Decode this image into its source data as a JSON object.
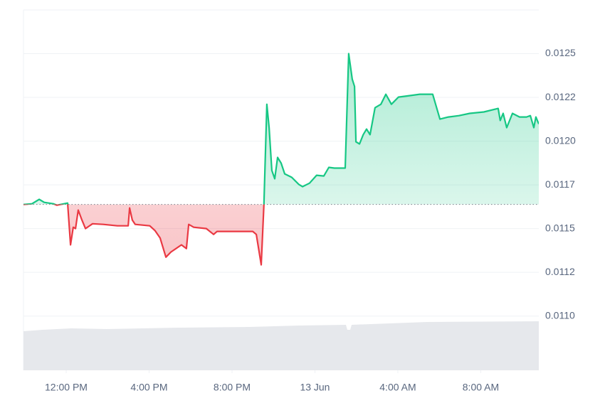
{
  "chart_data": {
    "type": "line",
    "baseline": 0.011638,
    "up_color": "#16c784",
    "down_color": "#ea3943",
    "grid": true,
    "xlim": [
      9.94,
      34.8
    ],
    "xticks": [
      {
        "value": 12,
        "label": "12:00 PM"
      },
      {
        "value": 16,
        "label": "4:00 PM"
      },
      {
        "value": 20,
        "label": "8:00 PM"
      },
      {
        "value": 24,
        "label": "13 Jun"
      },
      {
        "value": 28,
        "label": "4:00 AM"
      },
      {
        "value": 32,
        "label": "8:00 AM"
      }
    ],
    "ylim": [
      0.01069,
      0.01275
    ],
    "yticks": [
      {
        "value": 0.011,
        "label": "0.0110"
      },
      {
        "value": 0.01125,
        "label": "0.0112"
      },
      0.0115,
      {
        "value": 0.01175,
        "label": "0.0117"
      },
      {
        "value": 0.012,
        "label": "0.0120"
      },
      {
        "value": 0.01225,
        "label": "0.0122"
      },
      0.0125
    ],
    "x": [
      9.94,
      10.35,
      10.7,
      10.94,
      11.38,
      11.55,
      12.07,
      12.21,
      12.34,
      12.45,
      12.58,
      12.76,
      12.93,
      13.27,
      13.79,
      14.47,
      14.99,
      15.06,
      15.19,
      15.33,
      16.03,
      16.29,
      16.53,
      16.81,
      17.05,
      17.56,
      17.8,
      17.91,
      18.15,
      18.76,
      19.11,
      19.28,
      20.14,
      21.0,
      21.17,
      21.41,
      21.54,
      21.68,
      21.79,
      21.92,
      22.06,
      22.2,
      22.37,
      22.54,
      22.88,
      23.23,
      23.4,
      23.74,
      24.08,
      24.43,
      24.67,
      24.94,
      25.29,
      25.46,
      25.63,
      25.8,
      25.91,
      25.98,
      26.15,
      26.33,
      26.49,
      26.66,
      26.9,
      27.18,
      27.42,
      27.69,
      28.03,
      28.55,
      29.06,
      29.68,
      30.03,
      30.44,
      30.95,
      31.47,
      32.15,
      32.84,
      32.94,
      33.08,
      33.25,
      33.53,
      33.87,
      34.21,
      34.39,
      34.56,
      34.66,
      34.8
    ],
    "values": [
      0.011638,
      0.011642,
      0.011667,
      0.01165,
      0.011642,
      0.011634,
      0.011646,
      0.011407,
      0.011508,
      0.0115,
      0.011606,
      0.011549,
      0.0115,
      0.011528,
      0.011524,
      0.011516,
      0.011516,
      0.011618,
      0.011549,
      0.011524,
      0.011516,
      0.011488,
      0.011447,
      0.011337,
      0.011366,
      0.011407,
      0.011386,
      0.011524,
      0.011508,
      0.0115,
      0.011467,
      0.011484,
      0.011484,
      0.011484,
      0.011467,
      0.011293,
      0.011638,
      0.012211,
      0.012077,
      0.011833,
      0.011785,
      0.011907,
      0.011874,
      0.011813,
      0.011793,
      0.011752,
      0.01174,
      0.01176,
      0.011805,
      0.011801,
      0.01185,
      0.011846,
      0.011846,
      0.011846,
      0.0125,
      0.012354,
      0.012313,
      0.011996,
      0.011984,
      0.012037,
      0.012069,
      0.012037,
      0.012191,
      0.012211,
      0.012268,
      0.012211,
      0.012252,
      0.01226,
      0.012268,
      0.012268,
      0.012126,
      0.012138,
      0.012146,
      0.012159,
      0.012167,
      0.012187,
      0.012118,
      0.012159,
      0.012077,
      0.012159,
      0.012138,
      0.012138,
      0.012146,
      0.012077,
      0.012138,
      0.012098
    ]
  }
}
